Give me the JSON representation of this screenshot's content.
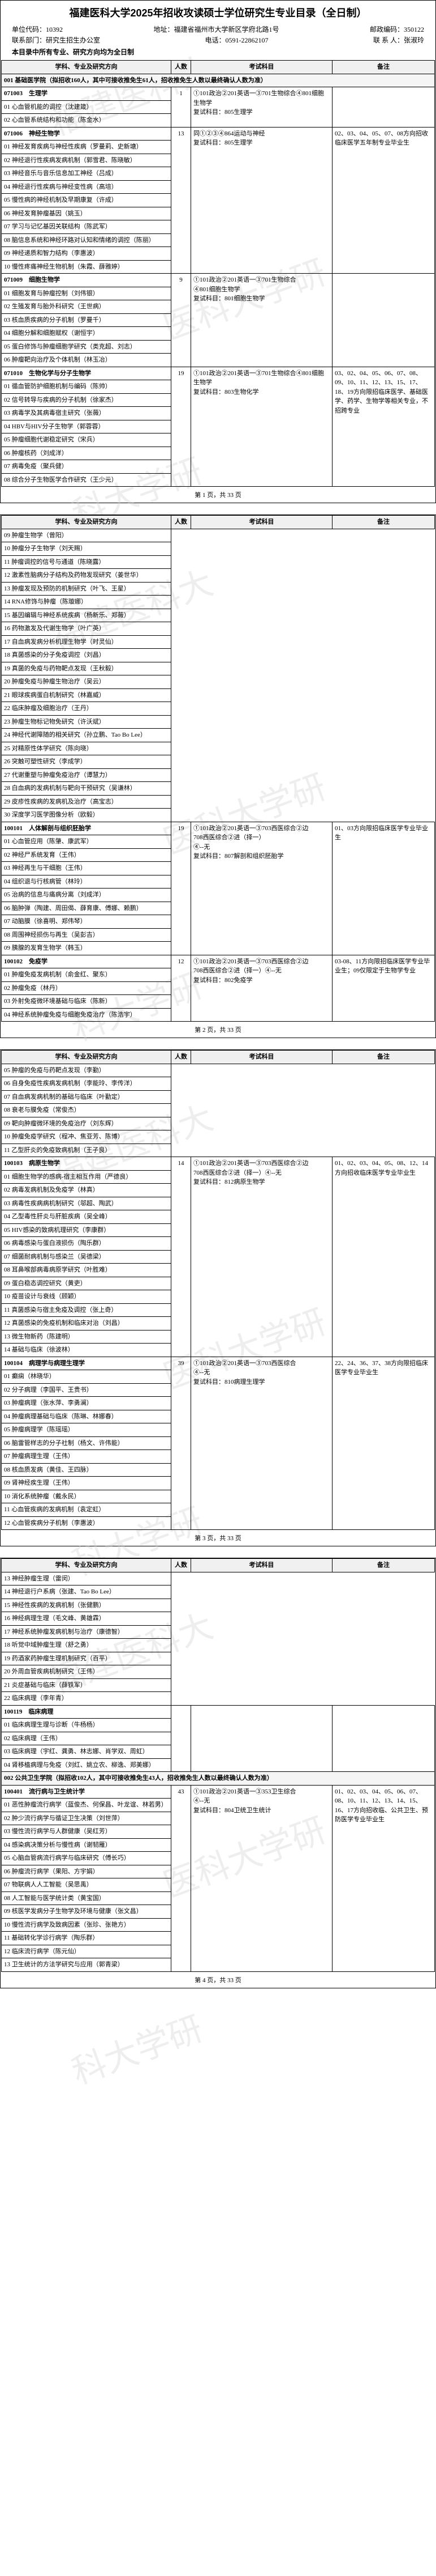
{
  "doc": {
    "title": "福建医科大学2025年招收攻读硕士学位研究生专业目录（全日制）",
    "unit_code_label": "单位代码：",
    "unit_code": "10392",
    "addr_label": "地址：",
    "addr": "福建省福州市大学新区学府北路1号",
    "zip_label": "邮政编码：",
    "zip": "350122",
    "dept_label": "联系部门：",
    "dept": "研究生招生办公室",
    "tel_label": "电话：",
    "tel": "0591-22862107",
    "contact_label": "联 系 人：",
    "contact": "张淑玲",
    "note_line": "本目录中所有专业、研究方向均为全日制",
    "col_subject": "学科、专业及研究方向",
    "col_num": "人数",
    "col_exam": "考试科目",
    "col_note": "备注",
    "total_pages": "共 33 页"
  },
  "pages": [
    {
      "page_no": "第 1 页，",
      "watermarks": [
        "福建医科大",
        "医科大学研",
        "科大学研"
      ],
      "rows": [
        {
          "type": "section",
          "text": "001 基础医学院（拟招收160人，其中可接收推免生61人，招收推免生人数以最终确认人数为准）"
        },
        {
          "type": "major",
          "code": "071003",
          "name": "生理学",
          "num": "1",
          "exam": [
            "①101政治②201英语一③701生物综合④801细胞生物学",
            "复试科目：805生理学"
          ],
          "note": ""
        },
        {
          "type": "dir",
          "text": "01 心血管机能的调控（沈建箴）"
        },
        {
          "type": "dir",
          "text": "02 心血管系统结构和功能（陈金水）"
        },
        {
          "type": "major",
          "code": "071006",
          "name": "神经生物学",
          "num": "13",
          "exam": [
            "同①②③④864运动与神经",
            "复试科目：805生理学"
          ],
          "note": "02、03、04、05、07、08方向招收临床医学五年制专业毕业生"
        },
        {
          "type": "dir",
          "text": "01 神经发育疾病与神经性疾病（罗曼莉、史新塘）"
        },
        {
          "type": "dir",
          "text": "02 神经退行性疾病发病机制（郭雪君、陈晓敏）"
        },
        {
          "type": "dir",
          "text": "03 神经音乐与音乐信息加工神经（吕成）"
        },
        {
          "type": "dir",
          "text": "04 神经退行性疾病与神经变性病（高培）"
        },
        {
          "type": "dir",
          "text": "05 慢性病的神经机制及早期康复（许成）"
        },
        {
          "type": "dir",
          "text": "06 神经发育肿瘤基因（姚玉）"
        },
        {
          "type": "dir",
          "text": "07 学习与记忆基因关联结构（陈武军）"
        },
        {
          "type": "dir",
          "text": "08 脑信息系统和神经环路对认知和情绪的调控（陈丽）"
        },
        {
          "type": "dir",
          "text": "09 神经递质和智力结构（李惠波）"
        },
        {
          "type": "dir",
          "text": "10 慢性疼痛神经生物机制（朱霞、薛雅婷）"
        },
        {
          "type": "major",
          "code": "071009",
          "name": "细胞生物学",
          "num": "9",
          "exam": [
            "①101政治②201英语一③701生物综合",
            "④801细胞生物学",
            "复试科目：801细胞生物学"
          ],
          "note": ""
        },
        {
          "type": "dir",
          "text": "01 细胞发育与肿瘤控制（刘伟银）"
        },
        {
          "type": "dir",
          "text": "02 生殖发育与胎外科研究（王世病）"
        },
        {
          "type": "dir",
          "text": "03 核血质疾病的分子机制（罗曼千）"
        },
        {
          "type": "dir",
          "text": "04 细胞分解和细胞赋权（谢恒宇）"
        },
        {
          "type": "dir",
          "text": "05 蛋白修饰与肿瘤细胞学研究（类克超、刘志）"
        },
        {
          "type": "dir",
          "text": "06 肿瘤靶向治疗及个体机制（林玉冶）"
        },
        {
          "type": "major",
          "code": "071010",
          "name": "生物化学与分子生物学",
          "num": "19",
          "exam": [
            "①101政治②201英语一③701生物综合④801细胞生物学",
            "复试科目：803生物化学"
          ],
          "note": "03、02、04、05、06、07、08、09、10、11、12、13、15、17、18、19方向限招临床医学、基础医学、药学、生物学等相关专业，不招跨专业"
        },
        {
          "type": "dir",
          "text": "01 循血管防护细胞机制与编码（陈帅）"
        },
        {
          "type": "dir",
          "text": "02 信号转导与疾病的分子机制（徐家杰）"
        },
        {
          "type": "dir",
          "text": "03 病毒学及其病毒宿主研究（张薇）"
        },
        {
          "type": "dir",
          "text": "04 HBV与HIV分子生物学（郭蓉蓉）"
        },
        {
          "type": "dir",
          "text": "05 肿瘤细胞代谢稳定研究（宋兵）"
        },
        {
          "type": "dir",
          "text": "06 肿瘤核药（刘成洋）"
        },
        {
          "type": "dir",
          "text": "07 病毒免疫（聚兵健）"
        },
        {
          "type": "dir",
          "text": "08 综合分子生物医学合作研究（王少元）"
        }
      ]
    },
    {
      "page_no": "第 2 页，",
      "watermarks": [
        "福建医科大",
        "医科大学研",
        "科大学研"
      ],
      "rows": [
        {
          "type": "head"
        },
        {
          "type": "dir",
          "text": "09 肿瘤生物学（曾阳）"
        },
        {
          "type": "dir",
          "text": "10 肿瘤分子生物学（刘天赐）"
        },
        {
          "type": "dir",
          "text": "11 肿瘤调控的信号与通道（陈晓露）"
        },
        {
          "type": "dir",
          "text": "12 激素性脑病分子结构及药物发现研究（姜世华）"
        },
        {
          "type": "dir",
          "text": "13 肿瘤发现及预防的机制研究（叶飞、王星）"
        },
        {
          "type": "dir",
          "text": "14 RNA修饰与肿瘤（陈璇娜）"
        },
        {
          "type": "dir",
          "text": "15 基因编辑与神经系统疾病（杨新乐、郑薇）"
        },
        {
          "type": "dir",
          "text": "16 药物激发及代谢生物学（叶广英）"
        },
        {
          "type": "dir",
          "text": "17 自血病发病分析机理生物学（时灵仙）"
        },
        {
          "type": "dir",
          "text": "18 真菌感染的分子免疫调控（刘昌）"
        },
        {
          "type": "dir",
          "text": "19 真菌的免疫与药物靶点发现（王秋毅）"
        },
        {
          "type": "dir",
          "text": "20 肿瘤免疫与肿瘤生物治疗（吴云）"
        },
        {
          "type": "dir",
          "text": "21 眼球疾病蛋白机制研究（林嘉威）"
        },
        {
          "type": "dir",
          "text": "22 临床肿瘤及细胞治疗（王丹）"
        },
        {
          "type": "dir",
          "text": "23 肿瘤生物标记物免研究（许沃斌）"
        },
        {
          "type": "dir",
          "text": "24 神经代谢障随的相关研究（孙立鹏、Tao Bo Lee）"
        },
        {
          "type": "dir",
          "text": "25 对精原性体学研究（陈向晓）"
        },
        {
          "type": "dir",
          "text": "26 突触可塑性研究（李成学）"
        },
        {
          "type": "dir",
          "text": "27 代谢重塑与肿瘤免疫治疗（谭慧力）"
        },
        {
          "type": "dir",
          "text": "28 白血病的发病机制与靶向干预研究（吴谦林）"
        },
        {
          "type": "dir",
          "text": "29 皮疹性疾病的发病机及治疗（高宝志）"
        },
        {
          "type": "dir",
          "text": "30 深度学习医学图像分析（欧毅）"
        },
        {
          "type": "major",
          "code": "100101",
          "name": "人体解剖与组织胚胎学",
          "num": "19",
          "exam": [
            "①101政治②201英语一③703西医综合②边",
            "708西医综合②进（择一）",
            "④--无",
            "复试科目：807解剖和组织胚胎学"
          ],
          "note": "01、03方向限招临床医学专业毕业生"
        },
        {
          "type": "dir",
          "text": "01 心血管应用（陈肇、康武军）"
        },
        {
          "type": "dir",
          "text": "02 神经尸系统发育（王伟）"
        },
        {
          "type": "dir",
          "text": "03 神经再生与干细胞（王伟）"
        },
        {
          "type": "dir",
          "text": "04 组织退与行核病管（林玲）"
        },
        {
          "type": "dir",
          "text": "05 治病的信息与痛病分离（刘成洋）"
        },
        {
          "type": "dir",
          "text": "06 脑肿弹（陶建、周田偈、薛育康、傅娜、赖鹏）"
        },
        {
          "type": "dir",
          "text": "07 动脑膜（徐喜明、郑伟琴）"
        },
        {
          "type": "dir",
          "text": "08 周围神经损伤与再生（吴彭吉）"
        },
        {
          "type": "dir",
          "text": "09 胰腺的发育生物学（韩玉）"
        },
        {
          "type": "major",
          "code": "100102",
          "name": "免疫学",
          "num": "12",
          "exam": [
            "①101政治②201英语一③703西医综合②边",
            "708西医综合②进（择一）④--无",
            "复试科目：802免疫学"
          ],
          "note": "03-08、11方向限招临床医学专业毕业生；09仅限定于生物学专业"
        },
        {
          "type": "dir",
          "text": "01 肿瘤免疫发病机制（俞金红、聚东）"
        },
        {
          "type": "dir",
          "text": "02 肿瘤免疫（林丹）"
        },
        {
          "type": "dir",
          "text": "03 外射免疫微环境基础与临床（陈新）"
        },
        {
          "type": "dir",
          "text": "04 神经系统肿瘤免疫与细胞免疫治疗（陈浩宇）"
        }
      ]
    },
    {
      "page_no": "第 3 页，",
      "watermarks": [
        "福建医科大",
        "医科大学研",
        "科大学研"
      ],
      "rows": [
        {
          "type": "head"
        },
        {
          "type": "dir",
          "text": "05 肿瘤的免疫与药靶点发现（李勤）"
        },
        {
          "type": "dir",
          "text": "06 自身免疫性疾病发病机制（李能玲、李传洋）"
        },
        {
          "type": "dir",
          "text": "07 自血病发病机制的基础与临床（叶勤定）"
        },
        {
          "type": "dir",
          "text": "08 衰老与膜免疫（常俊杰）"
        },
        {
          "type": "dir",
          "text": "09 靶向肿瘤微环境的免疫治疗（刘东辉）"
        },
        {
          "type": "dir",
          "text": "10 肿瘤免疫学研究（程冲、焦亚芳、陈博）"
        },
        {
          "type": "dir",
          "text": "11 乙型肝炎的免疫致病机制（王子良）"
        },
        {
          "type": "major",
          "code": "100103",
          "name": "病原生物学",
          "num": "14",
          "exam": [
            "①101政治②201英语一③703西医综合②边",
            "708西医综合②进（择一）④--无",
            "复试科目：812病原生物学"
          ],
          "note": "01、02、03、04、05、08、12、14方向招收临床医学专业毕业生"
        },
        {
          "type": "dir",
          "text": "01 细胞生物学的感病-宿主相互作用（严德良）"
        },
        {
          "type": "dir",
          "text": "02 病毒发病机制及免疫学（林真）"
        },
        {
          "type": "dir",
          "text": "03 病毒性疾病病机制研究（邬超、陶武）"
        },
        {
          "type": "dir",
          "text": "04 乙型毒性肝炎与肝脏疾病（吴全峰）"
        },
        {
          "type": "dir",
          "text": "05 HIV感染的致病机理研究（李康群）"
        },
        {
          "type": "dir",
          "text": "06 病毒感染与蛋白液损伤（陶乐群）"
        },
        {
          "type": "dir",
          "text": "07 细菌耐病机制与感染兰（吴德梁）"
        },
        {
          "type": "dir",
          "text": "08 耳鼻喉部病毒病原学研究（叶胜难）"
        },
        {
          "type": "dir",
          "text": "09 蛋白稳态调控研究（黄吏）"
        },
        {
          "type": "dir",
          "text": "10 疫苗设计与衰线（顾颖）"
        },
        {
          "type": "dir",
          "text": "11 真菌感染与宿主免疫及调控（张上奇）"
        },
        {
          "type": "dir",
          "text": "12 真菌感染的免疫机制和临床对治（刘昌）"
        },
        {
          "type": "dir",
          "text": "13 微生物新药（陈建明）"
        },
        {
          "type": "dir",
          "text": "14 基础与临床（徐波林）"
        },
        {
          "type": "major",
          "code": "100104",
          "name": "病理学与病理生理学",
          "num": "39",
          "exam": [
            "①101政治②201英语一③703西医综合",
            "④--无",
            "复试科目：810病理生理学"
          ],
          "note": "22、24、36、37、38方向限招临床医学专业毕业生"
        },
        {
          "type": "dir",
          "text": "01 癫痫（林晓华）"
        },
        {
          "type": "dir",
          "text": "02 分子病理（李国平、王贵书）"
        },
        {
          "type": "dir",
          "text": "03 肿瘤病理（张水萍、李勇澜）"
        },
        {
          "type": "dir",
          "text": "04 肿瘤病理基础与临床（陈琳、林娜春）"
        },
        {
          "type": "dir",
          "text": "05 肿瘤病理学（陈瑶瑶）"
        },
        {
          "type": "dir",
          "text": "06 脑雷管样志的分子社制（杨文、许伟能）"
        },
        {
          "type": "dir",
          "text": "07 肿瘤病理生理（王伟）"
        },
        {
          "type": "dir",
          "text": "08 核血质发病（黄佳、王四脉）"
        },
        {
          "type": "dir",
          "text": "09 肾神经疾生理（王伟）"
        },
        {
          "type": "dir",
          "text": "10 消化系统肿瘤（戴永民）"
        },
        {
          "type": "dir",
          "text": "11 心血管疾病的发病机制（袁定虹）"
        },
        {
          "type": "dir",
          "text": "12 心血管疾病分子机制（李惠波）"
        }
      ]
    },
    {
      "page_no": "第 4 页，",
      "watermarks": [
        "福建医科大",
        "医科大学研",
        "科大学研"
      ],
      "rows": [
        {
          "type": "head"
        },
        {
          "type": "dir",
          "text": "13 神经肿瘤生理（雷闵）"
        },
        {
          "type": "dir",
          "text": "14 神经退行户系病（张建、Tao Bo Lee）"
        },
        {
          "type": "dir",
          "text": "15 神经性疾病的发病机制（张健鹏）"
        },
        {
          "type": "dir",
          "text": "16 神经病理生理（毛文峰、黄雄霖）"
        },
        {
          "type": "dir",
          "text": "17 神经系统肿瘤发病机制与治疗（康德智）"
        },
        {
          "type": "dir",
          "text": "18 听觉中域肿瘤生理（舒之勇）"
        },
        {
          "type": "dir",
          "text": "19 药酒家药肿瘤生理机制研究（百平）"
        },
        {
          "type": "dir",
          "text": "20 外周血管疾病机制研究（王伟）"
        },
        {
          "type": "dir",
          "text": "21 炎症基础与临床（薛铁军）"
        },
        {
          "type": "dir",
          "text": "22 临床病理（李年青）"
        },
        {
          "type": "major",
          "code": "100119",
          "name": "临床病理",
          "num": "",
          "exam": "",
          "note": ""
        },
        {
          "type": "dir",
          "text": "01 临床病理生理与诊断（牛杨杨）"
        },
        {
          "type": "dir",
          "text": "02 临床病理（王伟）"
        },
        {
          "type": "dir",
          "text": "03 临床病理（宇红、龚勇、林志娜、肖学双、周虹）"
        },
        {
          "type": "dir",
          "text": "04 肾移植病理与免疫（刘红、姚立农、柳逸、郑美娜）"
        },
        {
          "type": "section",
          "text": "002 公共卫生学院（拟招收102人，其中可接收推免生43人，招收推免生人数以最终确认人数为准）"
        },
        {
          "type": "major",
          "code": "100401",
          "name": "流行病与卫生统计学",
          "num": "43",
          "exam": [
            "①101政治②201英语一③353卫生综合",
            "④--无",
            "复试科目：804卫统卫生统计"
          ],
          "note": "01、02、03、04、05、06、07、08、10、11、12、13、14、15、16、17方向招收临、公共卫生、预防医学专业毕业生"
        },
        {
          "type": "dir",
          "text": "01 恶性肿瘤流行病学（蓝俊杰、何保昌、叶龙谊、林若男）"
        },
        {
          "type": "dir",
          "text": "02 肿少流行病学与循证卫生决策（刘世萍）"
        },
        {
          "type": "dir",
          "text": "03 慢性流行病学与人群健康（吴红芳）"
        },
        {
          "type": "dir",
          "text": "04 感染病决策分析与慢性病（谢韧雁）"
        },
        {
          "type": "dir",
          "text": "05 心脑血管病流行病学与临床研究（傅长巧）"
        },
        {
          "type": "dir",
          "text": "06 肿瘤流行病学（果阳、方宇娟）"
        },
        {
          "type": "dir",
          "text": "07 物联病人人工智能（吴思禹）"
        },
        {
          "type": "dir",
          "text": "08 人工智能与医学统计类（黄宝国）"
        },
        {
          "type": "dir",
          "text": "09 核医学发病分子生物学及环境与健康（张文昌）"
        },
        {
          "type": "dir",
          "text": "10 慢性流行病学及致病因素（张珍、张艳方）"
        },
        {
          "type": "dir",
          "text": "11 基础转化学诊行病学（陶乐群）"
        },
        {
          "type": "dir",
          "text": "12 临床流行病学（陈元仙）"
        },
        {
          "type": "dir",
          "text": "13 卫生统计的方法学研究与应用（郭青梁）"
        }
      ]
    }
  ]
}
